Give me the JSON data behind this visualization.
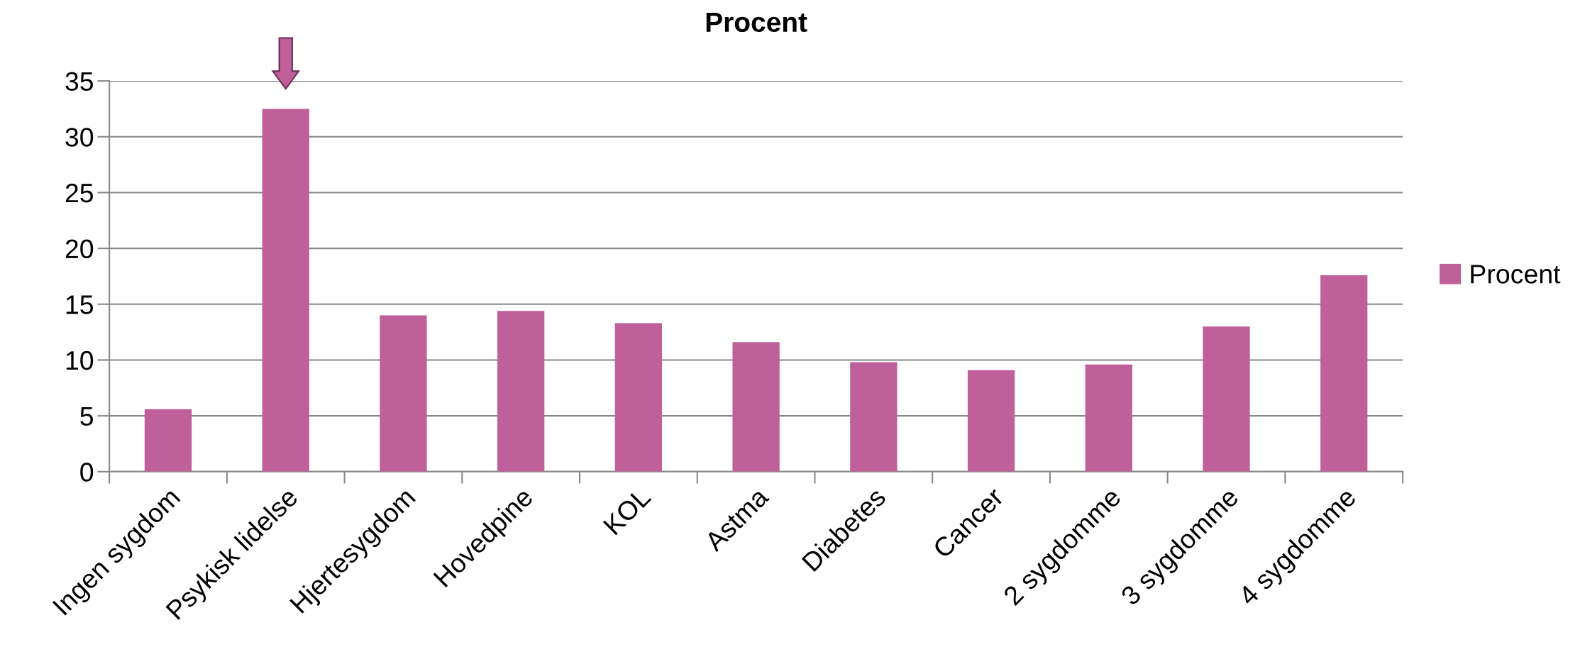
{
  "chart_data": {
    "type": "bar",
    "title": "Procent",
    "categories": [
      "Ingen sygdom",
      "Psykisk lidelse",
      "Hjertesygdom",
      "Hovedpine",
      "KOL",
      "Astma",
      "Diabetes",
      "Cancer",
      "2 sygdomme",
      "3 sygdomme",
      "4 sygdomme"
    ],
    "series": [
      {
        "name": "Procent",
        "color": "#c0609b",
        "values": [
          5.6,
          32.5,
          14.0,
          14.4,
          13.3,
          11.6,
          9.8,
          9.1,
          9.6,
          13.0,
          17.6
        ]
      }
    ],
    "ylim": [
      0,
      35
    ],
    "yticks": [
      0,
      5,
      10,
      15,
      20,
      25,
      30,
      35
    ],
    "grid": "y",
    "legend": "right"
  }
}
